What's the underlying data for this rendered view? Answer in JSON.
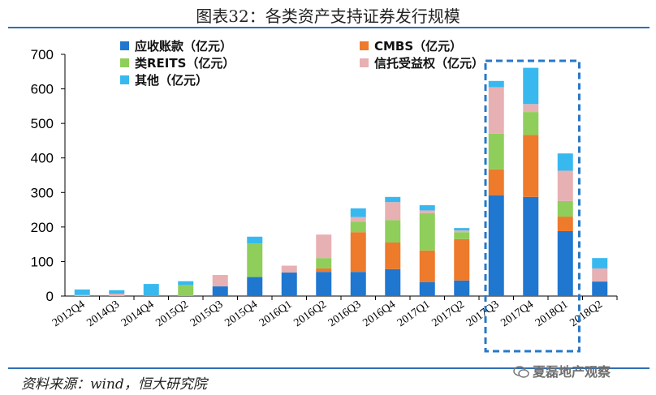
{
  "title": "图表32：各类资产支持证券发行规模",
  "source": "资料来源：wind，恒大研究院",
  "watermark": "夏磊地产观察",
  "chart_data": {
    "type": "stacked-bar",
    "categories": [
      "2012Q4",
      "2014Q3",
      "2014Q4",
      "2015Q2",
      "2015Q3",
      "2015Q4",
      "2016Q1",
      "2016Q2",
      "2016Q3",
      "2016Q4",
      "2017Q1",
      "2017Q2",
      "2017Q3",
      "2017Q4",
      "2018Q1",
      "2018Q2"
    ],
    "ylim": [
      0,
      700
    ],
    "yticks": [
      0,
      100,
      200,
      300,
      400,
      500,
      600,
      700
    ],
    "series": [
      {
        "name": "应收账款（亿元）",
        "color": "#1f77d0",
        "values": [
          0,
          0,
          0,
          0,
          28,
          55,
          68,
          70,
          70,
          78,
          40,
          45,
          292,
          287,
          188,
          42
        ]
      },
      {
        "name": "CMBS（亿元）",
        "color": "#ee7a2b",
        "values": [
          0,
          0,
          0,
          0,
          0,
          0,
          0,
          10,
          115,
          77,
          92,
          120,
          75,
          180,
          42,
          0
        ]
      },
      {
        "name": "类REITS（亿元）",
        "color": "#8fce5b",
        "values": [
          0,
          0,
          0,
          32,
          0,
          97,
          0,
          30,
          30,
          65,
          108,
          20,
          103,
          66,
          45,
          0
        ]
      },
      {
        "name": "信托受益权（亿元）",
        "color": "#e7b0b3",
        "values": [
          3,
          7,
          0,
          0,
          33,
          0,
          20,
          68,
          14,
          52,
          8,
          5,
          135,
          23,
          88,
          38
        ]
      },
      {
        "name": "其他（亿元）",
        "color": "#37b9ef",
        "values": [
          16,
          10,
          35,
          11,
          0,
          20,
          0,
          0,
          25,
          15,
          15,
          7,
          18,
          105,
          50,
          30
        ]
      }
    ],
    "highlight": {
      "from": "2017Q3",
      "to": "2018Q1",
      "style": "dashed-box"
    }
  }
}
